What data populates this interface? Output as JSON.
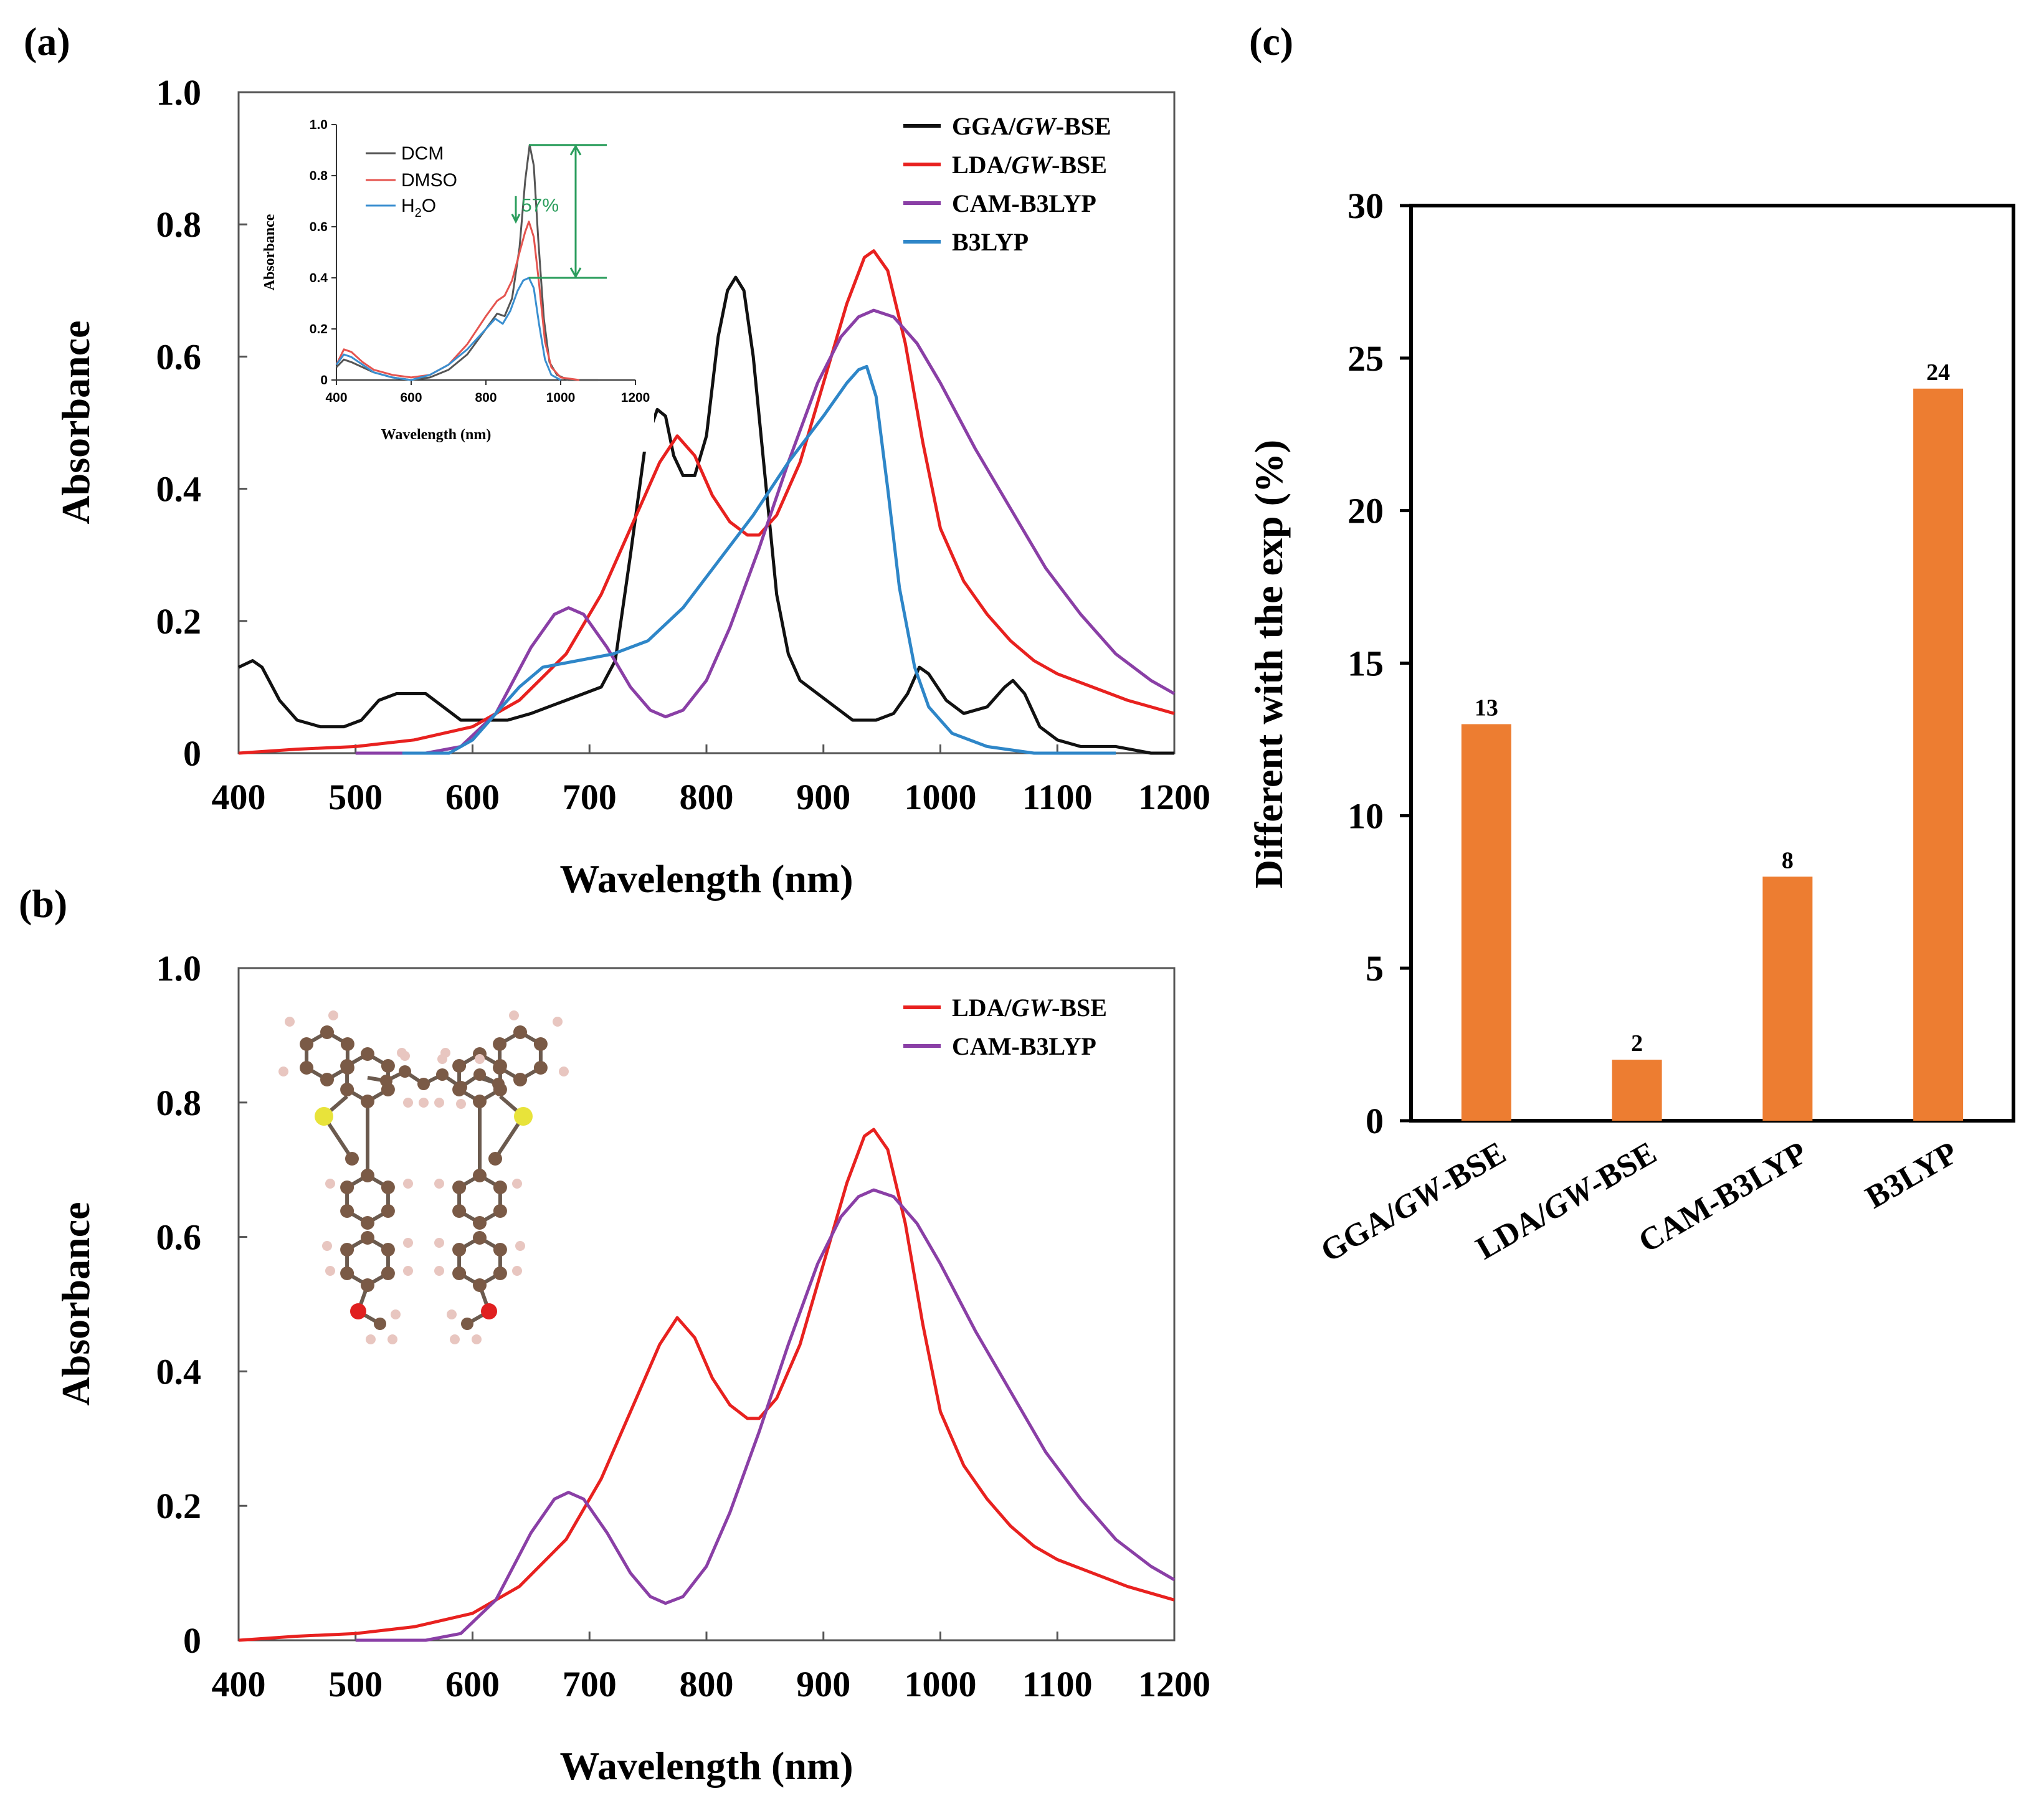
{
  "panels": {
    "a": "(a)",
    "b": "(b)",
    "c": "(c)"
  },
  "colors": {
    "GGA": "#111111",
    "LDA": "#e8211f",
    "CAM": "#8a3fa6",
    "B3LYP": "#2e86c8",
    "DCM": "#555555",
    "DMSO": "#e5544f",
    "H2O": "#3a8fd0",
    "bar": "#ed7d31",
    "arrow": "#2a9d5c"
  },
  "chart_data": [
    {
      "id": "a",
      "type": "line",
      "xlabel": "Wavelength (nm)",
      "ylabel": "Absorbance",
      "xlim": [
        400,
        1200
      ],
      "ylim": [
        0,
        1.0
      ],
      "xticks": [
        "400",
        "500",
        "600",
        "700",
        "800",
        "900",
        "1000",
        "1100",
        "1200"
      ],
      "yticks": [
        "0",
        "0.2",
        "0.4",
        "0.6",
        "0.8",
        "1.0"
      ],
      "legend_position": "top-right",
      "series": [
        {
          "key": "GGA",
          "name_main": "GGA/",
          "name_italic": "GW",
          "name_tail": "-BSE",
          "points": [
            [
              400,
              0.13
            ],
            [
              412,
              0.14
            ],
            [
              420,
              0.13
            ],
            [
              435,
              0.08
            ],
            [
              450,
              0.05
            ],
            [
              470,
              0.04
            ],
            [
              490,
              0.04
            ],
            [
              505,
              0.05
            ],
            [
              520,
              0.08
            ],
            [
              535,
              0.09
            ],
            [
              550,
              0.09
            ],
            [
              560,
              0.09
            ],
            [
              575,
              0.07
            ],
            [
              590,
              0.05
            ],
            [
              610,
              0.05
            ],
            [
              630,
              0.05
            ],
            [
              650,
              0.06
            ],
            [
              665,
              0.07
            ],
            [
              680,
              0.08
            ],
            [
              695,
              0.09
            ],
            [
              710,
              0.1
            ],
            [
              722,
              0.14
            ],
            [
              735,
              0.3
            ],
            [
              748,
              0.47
            ],
            [
              758,
              0.52
            ],
            [
              765,
              0.51
            ],
            [
              772,
              0.45
            ],
            [
              780,
              0.42
            ],
            [
              790,
              0.42
            ],
            [
              800,
              0.48
            ],
            [
              810,
              0.63
            ],
            [
              818,
              0.7
            ],
            [
              825,
              0.72
            ],
            [
              832,
              0.7
            ],
            [
              840,
              0.6
            ],
            [
              850,
              0.42
            ],
            [
              860,
              0.24
            ],
            [
              870,
              0.15
            ],
            [
              880,
              0.11
            ],
            [
              895,
              0.09
            ],
            [
              910,
              0.07
            ],
            [
              925,
              0.05
            ],
            [
              945,
              0.05
            ],
            [
              960,
              0.06
            ],
            [
              972,
              0.09
            ],
            [
              982,
              0.13
            ],
            [
              990,
              0.12
            ],
            [
              1005,
              0.08
            ],
            [
              1020,
              0.06
            ],
            [
              1040,
              0.07
            ],
            [
              1055,
              0.1
            ],
            [
              1062,
              0.11
            ],
            [
              1072,
              0.09
            ],
            [
              1085,
              0.04
            ],
            [
              1100,
              0.02
            ],
            [
              1120,
              0.01
            ],
            [
              1150,
              0.01
            ],
            [
              1180,
              0.0
            ],
            [
              1200,
              0.0
            ]
          ]
        },
        {
          "key": "LDA",
          "name_main": "LDA/",
          "name_italic": "GW",
          "name_tail": "-BSE",
          "points": [
            [
              400,
              0.0
            ],
            [
              450,
              0.006
            ],
            [
              500,
              0.01
            ],
            [
              550,
              0.02
            ],
            [
              600,
              0.04
            ],
            [
              640,
              0.08
            ],
            [
              680,
              0.15
            ],
            [
              710,
              0.24
            ],
            [
              740,
              0.36
            ],
            [
              760,
              0.44
            ],
            [
              775,
              0.48
            ],
            [
              790,
              0.45
            ],
            [
              805,
              0.39
            ],
            [
              820,
              0.35
            ],
            [
              835,
              0.33
            ],
            [
              845,
              0.33
            ],
            [
              860,
              0.36
            ],
            [
              880,
              0.44
            ],
            [
              900,
              0.56
            ],
            [
              920,
              0.68
            ],
            [
              935,
              0.75
            ],
            [
              943,
              0.76
            ],
            [
              955,
              0.73
            ],
            [
              970,
              0.62
            ],
            [
              985,
              0.47
            ],
            [
              1000,
              0.34
            ],
            [
              1020,
              0.26
            ],
            [
              1040,
              0.21
            ],
            [
              1060,
              0.17
            ],
            [
              1080,
              0.14
            ],
            [
              1100,
              0.12
            ],
            [
              1130,
              0.1
            ],
            [
              1160,
              0.08
            ],
            [
              1200,
              0.06
            ]
          ]
        },
        {
          "key": "CAM",
          "name_main": "CAM-B3LYP",
          "name_italic": "",
          "name_tail": "",
          "points": [
            [
              500,
              0.0
            ],
            [
              560,
              0.0
            ],
            [
              590,
              0.01
            ],
            [
              620,
              0.06
            ],
            [
              650,
              0.16
            ],
            [
              670,
              0.21
            ],
            [
              682,
              0.22
            ],
            [
              695,
              0.21
            ],
            [
              715,
              0.16
            ],
            [
              735,
              0.1
            ],
            [
              752,
              0.065
            ],
            [
              765,
              0.055
            ],
            [
              780,
              0.065
            ],
            [
              800,
              0.11
            ],
            [
              820,
              0.19
            ],
            [
              845,
              0.31
            ],
            [
              870,
              0.44
            ],
            [
              895,
              0.56
            ],
            [
              915,
              0.63
            ],
            [
              930,
              0.66
            ],
            [
              943,
              0.67
            ],
            [
              960,
              0.66
            ],
            [
              980,
              0.62
            ],
            [
              1000,
              0.56
            ],
            [
              1030,
              0.46
            ],
            [
              1060,
              0.37
            ],
            [
              1090,
              0.28
            ],
            [
              1120,
              0.21
            ],
            [
              1150,
              0.15
            ],
            [
              1180,
              0.11
            ],
            [
              1200,
              0.09
            ]
          ]
        },
        {
          "key": "B3LYP",
          "name_main": "B3LYP",
          "name_italic": "",
          "name_tail": "",
          "points": [
            [
              540,
              0.0
            ],
            [
              580,
              0.0
            ],
            [
              600,
              0.02
            ],
            [
              620,
              0.06
            ],
            [
              640,
              0.1
            ],
            [
              660,
              0.13
            ],
            [
              690,
              0.14
            ],
            [
              720,
              0.15
            ],
            [
              750,
              0.17
            ],
            [
              780,
              0.22
            ],
            [
              810,
              0.29
            ],
            [
              840,
              0.36
            ],
            [
              870,
              0.44
            ],
            [
              900,
              0.51
            ],
            [
              920,
              0.56
            ],
            [
              930,
              0.58
            ],
            [
              937,
              0.585
            ],
            [
              945,
              0.54
            ],
            [
              955,
              0.4
            ],
            [
              965,
              0.25
            ],
            [
              978,
              0.13
            ],
            [
              990,
              0.07
            ],
            [
              1010,
              0.03
            ],
            [
              1040,
              0.01
            ],
            [
              1080,
              0.0
            ],
            [
              1150,
              0.0
            ]
          ]
        }
      ],
      "inset": {
        "xlabel": "Wavelength (nm)",
        "ylabel": "Absorbance",
        "xlim": [
          400,
          1200
        ],
        "ylim": [
          0,
          1.0
        ],
        "xticks": [
          "400",
          "600",
          "800",
          "1000",
          "1200"
        ],
        "yticks": [
          "0",
          "0.2",
          "0.4",
          "0.6",
          "0.8",
          "1.0"
        ],
        "annotation": "57%",
        "series": [
          {
            "key": "DCM",
            "name": "DCM",
            "points": [
              [
                400,
                0.05
              ],
              [
                420,
                0.08
              ],
              [
                440,
                0.07
              ],
              [
                470,
                0.05
              ],
              [
                500,
                0.03
              ],
              [
                550,
                0.01
              ],
              [
                600,
                0.0
              ],
              [
                650,
                0.01
              ],
              [
                700,
                0.04
              ],
              [
                750,
                0.1
              ],
              [
                800,
                0.2
              ],
              [
                830,
                0.26
              ],
              [
                850,
                0.25
              ],
              [
                870,
                0.32
              ],
              [
                890,
                0.52
              ],
              [
                905,
                0.78
              ],
              [
                917,
                0.92
              ],
              [
                928,
                0.84
              ],
              [
                940,
                0.55
              ],
              [
                955,
                0.24
              ],
              [
                970,
                0.07
              ],
              [
                990,
                0.02
              ],
              [
                1020,
                0.0
              ],
              [
                1100,
                0.0
              ]
            ]
          },
          {
            "key": "DMSO",
            "name": "DMSO",
            "points": [
              [
                400,
                0.06
              ],
              [
                420,
                0.12
              ],
              [
                440,
                0.11
              ],
              [
                470,
                0.07
              ],
              [
                500,
                0.04
              ],
              [
                550,
                0.02
              ],
              [
                600,
                0.01
              ],
              [
                650,
                0.02
              ],
              [
                700,
                0.06
              ],
              [
                750,
                0.14
              ],
              [
                800,
                0.25
              ],
              [
                830,
                0.31
              ],
              [
                850,
                0.33
              ],
              [
                870,
                0.39
              ],
              [
                890,
                0.5
              ],
              [
                905,
                0.58
              ],
              [
                915,
                0.62
              ],
              [
                928,
                0.56
              ],
              [
                942,
                0.38
              ],
              [
                958,
                0.15
              ],
              [
                975,
                0.05
              ],
              [
                1000,
                0.01
              ],
              [
                1050,
                0.0
              ]
            ]
          },
          {
            "key": "H2O",
            "name_main": "H",
            "name_sub": "2",
            "name_tail": "O",
            "points": [
              [
                400,
                0.06
              ],
              [
                420,
                0.1
              ],
              [
                440,
                0.09
              ],
              [
                470,
                0.06
              ],
              [
                500,
                0.03
              ],
              [
                550,
                0.01
              ],
              [
                600,
                0.0
              ],
              [
                650,
                0.02
              ],
              [
                700,
                0.06
              ],
              [
                750,
                0.12
              ],
              [
                800,
                0.2
              ],
              [
                825,
                0.24
              ],
              [
                845,
                0.22
              ],
              [
                865,
                0.27
              ],
              [
                885,
                0.35
              ],
              [
                900,
                0.39
              ],
              [
                915,
                0.4
              ],
              [
                928,
                0.36
              ],
              [
                942,
                0.22
              ],
              [
                958,
                0.08
              ],
              [
                975,
                0.02
              ],
              [
                1000,
                0.0
              ]
            ]
          }
        ]
      }
    },
    {
      "id": "b",
      "type": "line",
      "xlabel": "Wavelength (nm)",
      "ylabel": "Absorbance",
      "xlim": [
        400,
        1200
      ],
      "ylim": [
        0,
        1.0
      ],
      "xticks": [
        "400",
        "500",
        "600",
        "700",
        "800",
        "900",
        "1000",
        "1100",
        "1200"
      ],
      "yticks": [
        "0",
        "0.2",
        "0.4",
        "0.6",
        "0.8",
        "1.0"
      ],
      "legend_position": "top-right",
      "series_keys": [
        "LDA",
        "CAM"
      ]
    },
    {
      "id": "c",
      "type": "bar",
      "ylabel": "Different with the exp (%)",
      "ylim": [
        0,
        30
      ],
      "yticks": [
        "0",
        "5",
        "10",
        "15",
        "20",
        "25",
        "30"
      ],
      "categories": [
        {
          "main": "GGA/",
          "italic": "GW",
          "tail": "-BSE"
        },
        {
          "main": "LDA/",
          "italic": "GW",
          "tail": "-BSE"
        },
        {
          "main": "CAM-B3LYP",
          "italic": "",
          "tail": ""
        },
        {
          "main": "B3LYP",
          "italic": "",
          "tail": ""
        }
      ],
      "values": [
        13,
        2,
        8,
        24
      ],
      "value_labels": [
        "13",
        "2",
        "8",
        "24"
      ]
    }
  ]
}
